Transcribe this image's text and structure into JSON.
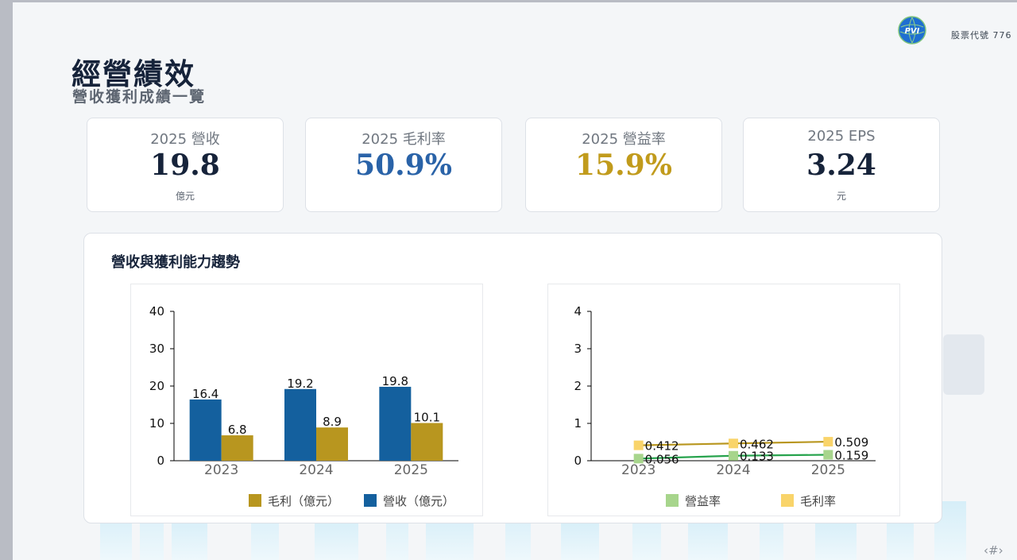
{
  "header": {
    "stock_code": "股票代號 776",
    "logo_text": "PVI"
  },
  "page": {
    "title": "經營績效",
    "subtitle": "營收獲利成績一覽",
    "page_number": "‹#›"
  },
  "kpis": [
    {
      "label": "2025 營收",
      "value": "19.8",
      "unit": "億元",
      "color": "#16233a"
    },
    {
      "label": "2025 毛利率",
      "value": "50.9%",
      "unit": "",
      "color": "#2a63a8"
    },
    {
      "label": "2025 營益率",
      "value": "15.9%",
      "unit": "",
      "color": "#c19b1c"
    },
    {
      "label": "2025 EPS",
      "value": "3.24",
      "unit": "元",
      "color": "#16233a"
    }
  ],
  "panel": {
    "title": "營收與獲利能力趨勢"
  },
  "chart_data": [
    {
      "type": "bar",
      "categories": [
        "2023",
        "2024",
        "2025"
      ],
      "series": [
        {
          "name": "營收（億元）",
          "values": [
            16.4,
            19.2,
            19.8
          ],
          "color": "#14609e"
        },
        {
          "name": "毛利（億元）",
          "values": [
            6.8,
            8.9,
            10.1
          ],
          "color": "#b8961f"
        }
      ],
      "legend_order": [
        "毛利（億元）",
        "營收（億元）"
      ],
      "ylim": [
        0,
        40
      ],
      "yticks": [
        0,
        10,
        20,
        30,
        40
      ],
      "data_labels": true,
      "legend_position": "bottom"
    },
    {
      "type": "line",
      "categories": [
        "2023",
        "2024",
        "2025"
      ],
      "series": [
        {
          "name": "營益率",
          "values": [
            0.056,
            0.133,
            0.159
          ],
          "color": "#27a34d",
          "marker_color": "#a7d58c"
        },
        {
          "name": "毛利率",
          "values": [
            0.412,
            0.462,
            0.509
          ],
          "color": "#b8961f",
          "marker_color": "#f9d46a"
        }
      ],
      "legend_order": [
        "營益率",
        "毛利率"
      ],
      "ylim": [
        0,
        4
      ],
      "yticks": [
        0,
        1,
        2,
        3,
        4
      ],
      "data_labels": true,
      "legend_position": "bottom"
    }
  ]
}
